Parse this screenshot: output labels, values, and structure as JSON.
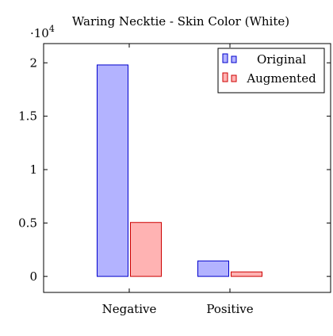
{
  "chart_data": {
    "type": "bar",
    "title": "Waring Necktie - Skin Color (White)",
    "categories": [
      "Negative",
      "Positive"
    ],
    "series": [
      {
        "name": "Original",
        "values": [
          19800,
          1450
        ],
        "fill": "#b3b3ff",
        "stroke": "#0000cc"
      },
      {
        "name": "Augmented",
        "values": [
          5050,
          420
        ],
        "fill": "#ffb3b3",
        "stroke": "#cc0000"
      }
    ],
    "ylim": [
      -1500,
      21800
    ],
    "yticks": [
      0,
      5000,
      10000,
      15000,
      20000
    ],
    "ytick_labels": [
      "0",
      "0.5",
      "1",
      "1.5",
      "2"
    ],
    "y_scale_label": "·10",
    "y_scale_exponent": "4",
    "xlabel": "",
    "ylabel": "",
    "legend_position": "top-right"
  }
}
